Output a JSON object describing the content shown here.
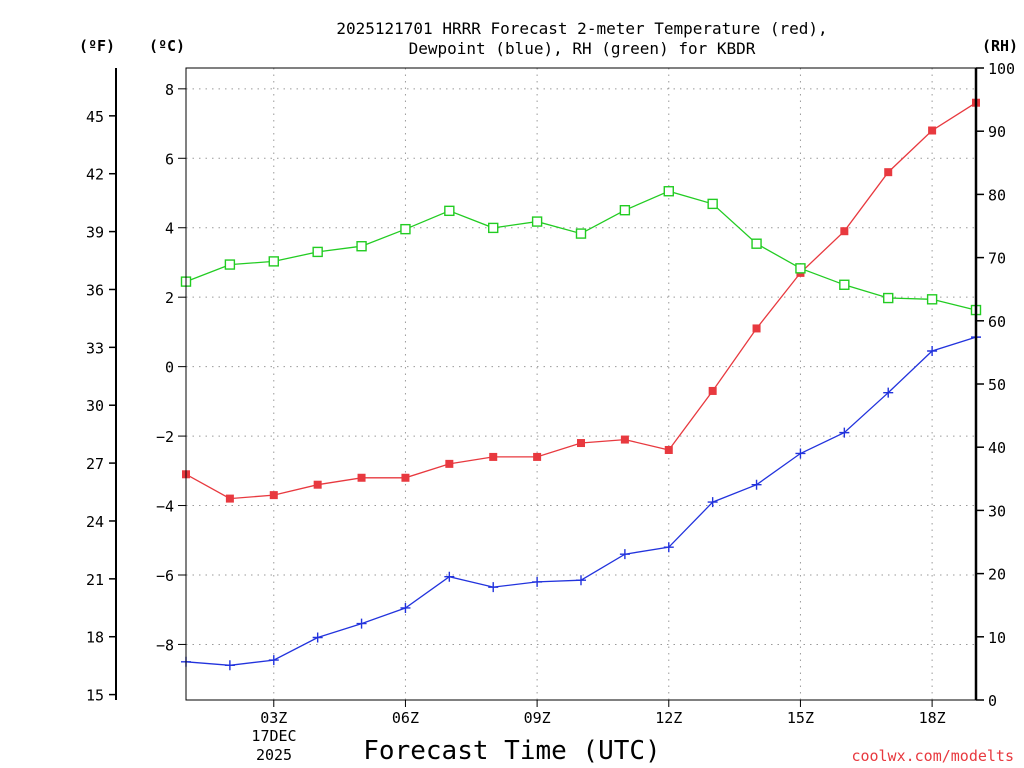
{
  "chart_data": {
    "type": "line",
    "title_lines": [
      "2025121701 HRRR Forecast 2-meter Temperature (red),",
      "Dewpoint (blue), RH (green) for KBDR"
    ],
    "xlabel": "Forecast Time (UTC)",
    "unit_labels": {
      "fahrenheit": "(ºF)",
      "celsius": "(ºC)",
      "rh": "(RH)"
    },
    "x_hours": [
      1,
      2,
      3,
      4,
      5,
      6,
      7,
      8,
      9,
      10,
      11,
      12,
      13,
      14,
      15,
      16,
      17,
      18,
      19
    ],
    "xlim": [
      1,
      19
    ],
    "x_ticks": [
      {
        "hour": 3,
        "label": "03Z"
      },
      {
        "hour": 6,
        "label": "06Z"
      },
      {
        "hour": 9,
        "label": "09Z"
      },
      {
        "hour": 12,
        "label": "12Z"
      },
      {
        "hour": 15,
        "label": "15Z"
      },
      {
        "hour": 18,
        "label": "18Z"
      }
    ],
    "date_label": [
      "17DEC",
      "2025"
    ],
    "celsius_axis": {
      "range": [
        -9.6,
        8.6
      ],
      "ticks": [
        -8,
        -6,
        -4,
        -2,
        0,
        2,
        4,
        6,
        8
      ]
    },
    "fahrenheit_axis": {
      "ticks": [
        15,
        18,
        21,
        24,
        27,
        30,
        33,
        36,
        39,
        42,
        45
      ]
    },
    "rh_axis": {
      "range": [
        0,
        100
      ],
      "ticks": [
        0,
        10,
        20,
        30,
        40,
        50,
        60,
        70,
        80,
        90,
        100
      ]
    },
    "grid": true,
    "series": [
      {
        "name": "2-meter Temperature",
        "axis": "celsius",
        "color": "#e8393f",
        "marker": "filled-square",
        "values": [
          -3.1,
          -3.8,
          -3.7,
          -3.4,
          -3.2,
          -3.2,
          -2.8,
          -2.6,
          -2.6,
          -2.2,
          -2.1,
          -2.4,
          -0.7,
          1.1,
          2.7,
          3.9,
          5.6,
          6.8,
          7.6
        ]
      },
      {
        "name": "Dewpoint",
        "axis": "celsius",
        "color": "#2233dd",
        "marker": "plus",
        "values": [
          -8.5,
          -8.6,
          -8.45,
          -7.8,
          -7.4,
          -6.95,
          -6.05,
          -6.35,
          -6.2,
          -6.15,
          -5.4,
          -5.2,
          -3.9,
          -3.4,
          -2.5,
          -1.9,
          -0.75,
          0.45,
          0.85
        ]
      },
      {
        "name": "RH",
        "axis": "rh",
        "color": "#22cc22",
        "marker": "open-square",
        "values": [
          66.2,
          68.9,
          69.4,
          70.9,
          71.8,
          74.5,
          77.4,
          74.7,
          75.7,
          73.8,
          77.5,
          80.5,
          78.5,
          72.2,
          68.3,
          65.7,
          63.6,
          63.4,
          61.7
        ]
      }
    ]
  },
  "credit": "coolwx.com/modelts"
}
